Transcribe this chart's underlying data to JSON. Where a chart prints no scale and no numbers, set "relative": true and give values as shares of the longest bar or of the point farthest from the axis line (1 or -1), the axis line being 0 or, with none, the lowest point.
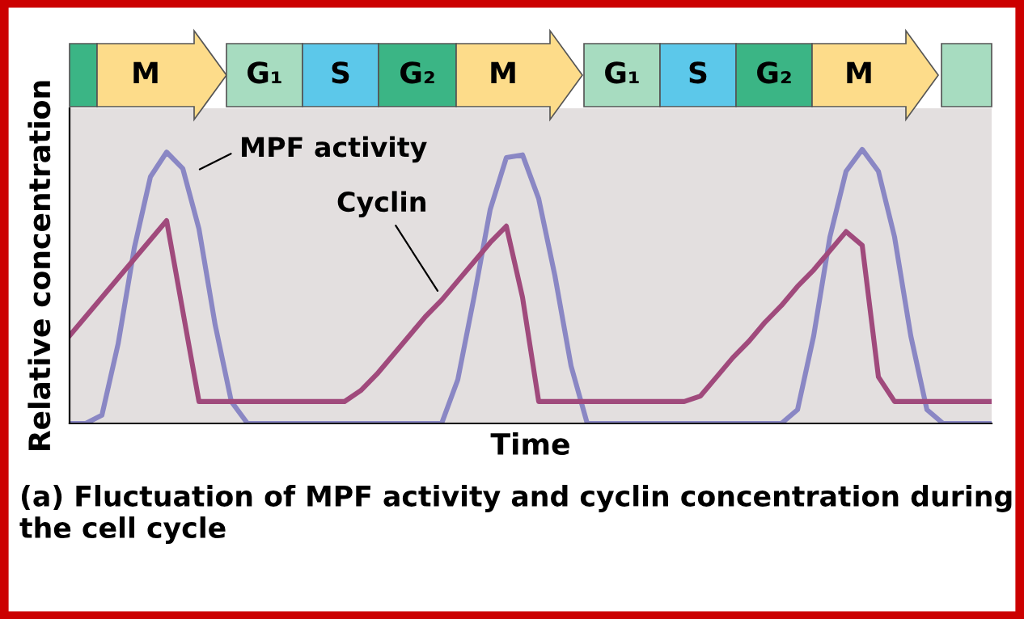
{
  "chart_data": {
    "type": "line",
    "relative": true,
    "xlabel": "Time",
    "ylabel": "Relative concentration",
    "title": "(a) Fluctuation of MPF activity and cyclin concentration during the cell cycle",
    "annotations": [
      "M",
      "G₁",
      "S",
      "G₂",
      "M",
      "G₁",
      "S",
      "G₂",
      "M"
    ],
    "categories": [
      null,
      null,
      null,
      null,
      null,
      null,
      null,
      null,
      null,
      null,
      null,
      null,
      null,
      null,
      null,
      null,
      null,
      null,
      null,
      null,
      null,
      null,
      null,
      null,
      null,
      null,
      null,
      null,
      null,
      null,
      null,
      null,
      null,
      null,
      null,
      null,
      null,
      null,
      null,
      null,
      null,
      null,
      null,
      null,
      null,
      null,
      null,
      null,
      null,
      null,
      null,
      null,
      null,
      null,
      null,
      null,
      null,
      null
    ],
    "series": [
      {
        "name": "MPF activity",
        "color": "#8a87c4",
        "values": [
          0,
          0,
          0.03,
          0.29,
          0.64,
          0.9,
          0.99,
          0.93,
          0.71,
          0.36,
          0.08,
          0,
          0,
          0,
          0,
          0,
          0,
          0,
          0,
          0,
          0,
          0,
          0,
          0,
          0.16,
          0.46,
          0.78,
          0.97,
          0.98,
          0.82,
          0.54,
          0.21,
          0,
          0,
          0,
          0,
          0,
          0,
          0,
          0,
          0,
          0,
          0,
          0,
          0,
          0.05,
          0.32,
          0.68,
          0.92,
          1,
          0.92,
          0.68,
          0.32,
          0.05,
          0,
          0,
          0,
          0
        ]
      },
      {
        "name": "Cyclin",
        "color": "#a04a7c",
        "values": [
          0.32,
          0.39,
          0.46,
          0.53,
          0.6,
          0.67,
          0.74,
          0.41,
          0.08,
          0.08,
          0.08,
          0.08,
          0.08,
          0.08,
          0.08,
          0.08,
          0.08,
          0.08,
          0.12,
          0.18,
          0.25,
          0.32,
          0.39,
          0.45,
          0.52,
          0.59,
          0.66,
          0.72,
          0.46,
          0.08,
          0.08,
          0.08,
          0.08,
          0.08,
          0.08,
          0.08,
          0.08,
          0.08,
          0.08,
          0.1,
          0.17,
          0.24,
          0.3,
          0.37,
          0.43,
          0.5,
          0.56,
          0.63,
          0.7,
          0.65,
          0.17,
          0.08,
          0.08,
          0.08,
          0.08,
          0.08,
          0.08,
          0.08
        ]
      }
    ],
    "marker": "none",
    "line_style": "solid"
  }
}
